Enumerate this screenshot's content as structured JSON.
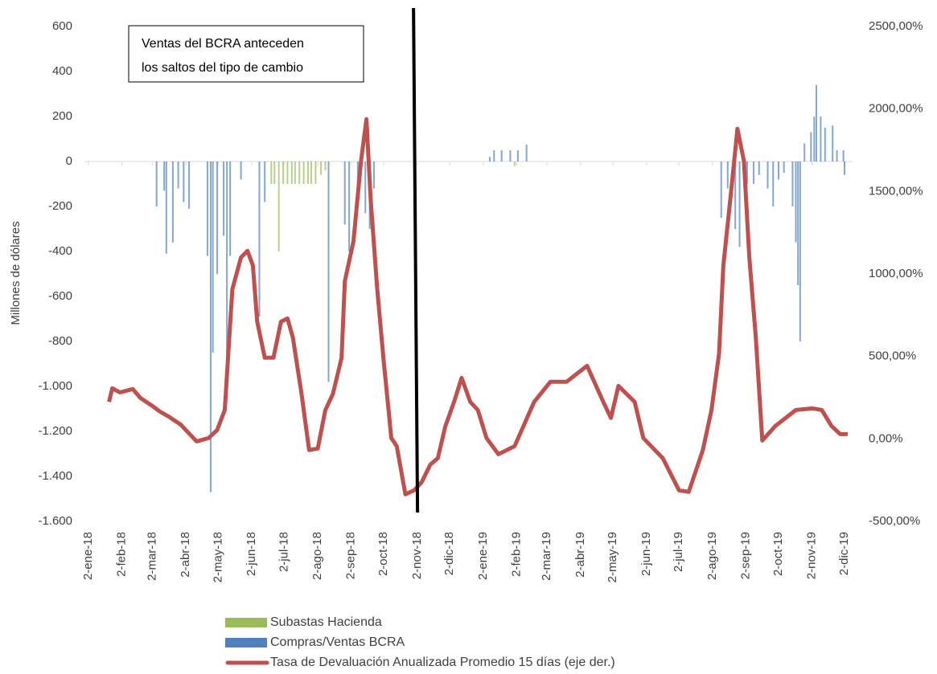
{
  "chart_data": {
    "type": "bar-line",
    "ylabel": "Millones de dólares",
    "annotation": [
      "Ventas del BCRA anteceden",
      "los saltos del tipo de cambio"
    ],
    "vline": "2018-10-31",
    "xlim": [
      "2018-01-02",
      "2019-12-02"
    ],
    "xticks": [
      {
        "value": "2018-01-02",
        "label": "2-ene-18"
      },
      {
        "value": "2018-02-02",
        "label": "2-feb-18"
      },
      {
        "value": "2018-03-02",
        "label": "2-mar-18"
      },
      {
        "value": "2018-04-02",
        "label": "2-abr-18"
      },
      {
        "value": "2018-05-02",
        "label": "2-may-18"
      },
      {
        "value": "2018-06-02",
        "label": "2-jun-18"
      },
      {
        "value": "2018-07-02",
        "label": "2-jul-18"
      },
      {
        "value": "2018-08-02",
        "label": "2-ago-18"
      },
      {
        "value": "2018-09-02",
        "label": "2-sep-18"
      },
      {
        "value": "2018-10-02",
        "label": "2-oct-18"
      },
      {
        "value": "2018-11-02",
        "label": "2-nov-18"
      },
      {
        "value": "2018-12-02",
        "label": "2-dic-18"
      },
      {
        "value": "2019-01-02",
        "label": "2-ene-19"
      },
      {
        "value": "2019-02-02",
        "label": "2-feb-19"
      },
      {
        "value": "2019-03-02",
        "label": "2-mar-19"
      },
      {
        "value": "2019-04-02",
        "label": "2-abr-19"
      },
      {
        "value": "2019-05-02",
        "label": "2-may-19"
      },
      {
        "value": "2019-06-02",
        "label": "2-jun-19"
      },
      {
        "value": "2019-07-02",
        "label": "2-jul-19"
      },
      {
        "value": "2019-08-02",
        "label": "2-ago-19"
      },
      {
        "value": "2019-09-02",
        "label": "2-sep-19"
      },
      {
        "value": "2019-10-02",
        "label": "2-oct-19"
      },
      {
        "value": "2019-11-02",
        "label": "2-nov-19"
      },
      {
        "value": "2019-12-02",
        "label": "2-dic-19"
      }
    ],
    "ylim": [
      -1600,
      600
    ],
    "yticks": [
      {
        "value": -1600,
        "label": "-1.600"
      },
      {
        "value": -1400,
        "label": "-1.400"
      },
      {
        "value": -1200,
        "label": "-1.200"
      },
      {
        "value": -1000,
        "label": "-1.000"
      },
      -800,
      -600,
      -400,
      -200,
      0,
      200,
      400,
      600
    ],
    "y2lim": [
      -500,
      2500
    ],
    "y2ticks": [
      {
        "value": -500,
        "label": "-500,00%"
      },
      {
        "value": 0,
        "label": "0,00%"
      },
      {
        "value": 500,
        "label": "500,00%"
      },
      {
        "value": 1000,
        "label": "1000,00%"
      },
      {
        "value": 1500,
        "label": "1500,00%"
      },
      {
        "value": 2000,
        "label": "2000,00%"
      },
      {
        "value": 2500,
        "label": "2500,00%"
      }
    ],
    "series": [
      {
        "name": "Subastas Hacienda",
        "type": "bar",
        "color": "#9bbb59",
        "x": [
          "2018-06-20",
          "2018-06-23",
          "2018-06-27",
          "2018-07-01",
          "2018-07-05",
          "2018-07-09",
          "2018-07-12",
          "2018-07-16",
          "2018-07-20",
          "2018-07-24",
          "2018-07-27",
          "2018-07-31",
          "2018-08-05",
          "2018-08-09",
          "2019-01-31"
        ],
        "values": [
          -100,
          -100,
          -400,
          -100,
          -100,
          -100,
          -100,
          -100,
          -100,
          -100,
          -100,
          -100,
          -60,
          -40,
          -20
        ]
      },
      {
        "name": "Compras/Ventas BCRA",
        "type": "bar",
        "color": "#4f81bd",
        "x": [
          "2018-03-06",
          "2018-03-13",
          "2018-03-15",
          "2018-03-21",
          "2018-03-26",
          "2018-03-31",
          "2018-04-05",
          "2018-04-22",
          "2018-04-25",
          "2018-04-27",
          "2018-05-01",
          "2018-05-07",
          "2018-05-10",
          "2018-05-13",
          "2018-05-23",
          "2018-06-09",
          "2018-06-14",
          "2018-08-12",
          "2018-08-27",
          "2018-08-31",
          "2018-09-08",
          "2018-09-15",
          "2018-09-19",
          "2018-09-23",
          "2019-01-08",
          "2019-01-12",
          "2019-01-19",
          "2019-01-27",
          "2019-02-03",
          "2019-02-11",
          "2019-08-10",
          "2019-08-16",
          "2019-08-23",
          "2019-08-27",
          "2019-09-03",
          "2019-09-09",
          "2019-09-14",
          "2019-09-22",
          "2019-09-27",
          "2019-10-02",
          "2019-10-07",
          "2019-10-15",
          "2019-10-18",
          "2019-10-20",
          "2019-10-22",
          "2019-10-26",
          "2019-11-01",
          "2019-11-04",
          "2019-11-06",
          "2019-11-10",
          "2019-11-14",
          "2019-11-21",
          "2019-11-25",
          "2019-12-01",
          "2019-12-02"
        ],
        "values": [
          -200,
          -130,
          -410,
          -360,
          -120,
          -180,
          -210,
          -420,
          -1470,
          -850,
          -500,
          -330,
          -1050,
          -420,
          -80,
          -690,
          -180,
          -980,
          -280,
          -400,
          -200,
          -230,
          -300,
          -120,
          20,
          50,
          50,
          50,
          50,
          75,
          -250,
          -120,
          -300,
          -380,
          -100,
          -100,
          -60,
          -120,
          -200,
          -80,
          -50,
          -200,
          -360,
          -550,
          -800,
          80,
          130,
          200,
          340,
          200,
          150,
          160,
          50,
          50,
          -60
        ]
      },
      {
        "name": "Tasa de Devaluación Anualizada Promedio 15 días (eje der.)",
        "type": "line",
        "axis": "y2",
        "color": "#c0504d",
        "x": [
          "2018-01-21",
          "2018-01-24",
          "2018-01-31",
          "2018-02-12",
          "2018-02-19",
          "2018-03-02",
          "2018-03-09",
          "2018-03-17",
          "2018-03-28",
          "2018-04-12",
          "2018-04-23",
          "2018-05-01",
          "2018-05-08",
          "2018-05-15",
          "2018-05-23",
          "2018-05-29",
          "2018-06-03",
          "2018-06-07",
          "2018-06-14",
          "2018-06-22",
          "2018-06-29",
          "2018-07-05",
          "2018-07-10",
          "2018-07-18",
          "2018-07-25",
          "2018-08-02",
          "2018-08-09",
          "2018-08-16",
          "2018-08-24",
          "2018-08-27",
          "2018-09-04",
          "2018-09-11",
          "2018-09-16",
          "2018-09-20",
          "2018-09-26",
          "2018-10-02",
          "2018-10-09",
          "2018-10-14",
          "2018-10-22",
          "2018-10-30",
          "2018-11-06",
          "2018-11-14",
          "2018-11-21",
          "2018-11-28",
          "2018-12-06",
          "2018-12-13",
          "2018-12-21",
          "2018-12-28",
          "2019-01-05",
          "2019-01-16",
          "2019-01-31",
          "2019-02-18",
          "2019-03-05",
          "2019-03-20",
          "2019-04-08",
          "2019-04-23",
          "2019-04-30",
          "2019-05-07",
          "2019-05-22",
          "2019-05-30",
          "2019-06-17",
          "2019-07-02",
          "2019-07-11",
          "2019-07-24",
          "2019-08-01",
          "2019-08-08",
          "2019-08-12",
          "2019-08-19",
          "2019-08-25",
          "2019-08-31",
          "2019-09-05",
          "2019-09-11",
          "2019-09-17",
          "2019-09-29",
          "2019-10-18",
          "2019-11-02",
          "2019-11-11",
          "2019-11-20",
          "2019-11-28",
          "2019-12-05"
        ],
        "values": [
          224,
          307,
          282,
          302,
          248,
          200,
          166,
          136,
          88,
          -15,
          5,
          54,
          175,
          906,
          1100,
          1140,
          1052,
          711,
          492,
          492,
          711,
          730,
          614,
          273,
          -68,
          -58,
          175,
          273,
          492,
          955,
          1198,
          1685,
          1938,
          1442,
          906,
          468,
          5,
          -44,
          -336,
          -312,
          -263,
          -156,
          -117,
          78,
          224,
          370,
          224,
          175,
          5,
          -93,
          -44,
          224,
          346,
          346,
          443,
          224,
          127,
          321,
          224,
          5,
          -117,
          -312,
          -321,
          -68,
          175,
          516,
          1052,
          1490,
          1880,
          1685,
          1100,
          614,
          -10,
          78,
          175,
          185,
          175,
          78,
          29,
          29
        ]
      }
    ]
  }
}
